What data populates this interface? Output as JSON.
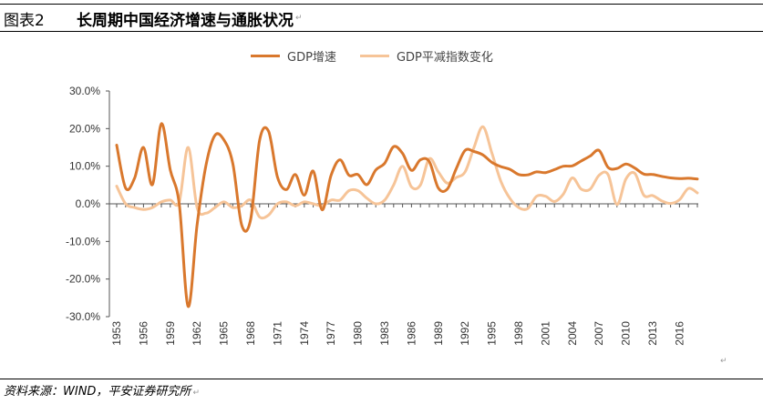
{
  "header": {
    "figure_label": "图表2",
    "title": "长周期中国经济增速与通胀状况",
    "return_mark": "↵"
  },
  "source": "资料来源：WIND，平安证券研究所",
  "chart_data": {
    "type": "line",
    "title": "长周期中国经济增速与通胀状况",
    "xlabel": "",
    "ylabel": "",
    "ylim": [
      -30,
      30
    ],
    "yticks": [
      30,
      20,
      10,
      0,
      -10,
      -20,
      -30
    ],
    "ytick_labels": [
      "30.0%",
      "20.0%",
      "10.0%",
      "0.0%",
      "-10.0%",
      "-20.0%",
      "-30.0%"
    ],
    "xlim": [
      1953,
      2018
    ],
    "xticks": [
      1953,
      1956,
      1959,
      1962,
      1965,
      1968,
      1971,
      1974,
      1977,
      1980,
      1983,
      1986,
      1989,
      1992,
      1995,
      1998,
      2001,
      2004,
      2007,
      2010,
      2013,
      2016
    ],
    "legend_position": "top-center",
    "series": [
      {
        "name": "GDP增速",
        "color": "#d9782d",
        "x": [
          1953,
          1954,
          1955,
          1956,
          1957,
          1958,
          1959,
          1960,
          1961,
          1962,
          1963,
          1964,
          1965,
          1966,
          1967,
          1968,
          1969,
          1970,
          1971,
          1972,
          1973,
          1974,
          1975,
          1976,
          1977,
          1978,
          1979,
          1980,
          1981,
          1982,
          1983,
          1984,
          1985,
          1986,
          1987,
          1988,
          1989,
          1990,
          1991,
          1992,
          1993,
          1994,
          1995,
          1996,
          1997,
          1998,
          1999,
          2000,
          2001,
          2002,
          2003,
          2004,
          2005,
          2006,
          2007,
          2008,
          2009,
          2010,
          2011,
          2012,
          2013,
          2014,
          2015,
          2016,
          2017,
          2018
        ],
        "values": [
          15.6,
          4.2,
          6.8,
          15.0,
          5.1,
          21.3,
          9.0,
          0.0,
          -27.3,
          -5.6,
          10.3,
          18.2,
          17.0,
          10.7,
          -5.7,
          -4.1,
          16.9,
          19.3,
          7.1,
          3.8,
          7.8,
          2.3,
          8.7,
          -1.6,
          7.6,
          11.7,
          7.6,
          7.8,
          5.1,
          9.0,
          10.8,
          15.2,
          13.4,
          8.9,
          11.7,
          11.2,
          4.2,
          3.9,
          9.3,
          14.2,
          13.9,
          13.0,
          11.0,
          9.9,
          9.2,
          7.8,
          7.7,
          8.5,
          8.3,
          9.1,
          10.0,
          10.1,
          11.4,
          12.7,
          14.2,
          9.7,
          9.4,
          10.6,
          9.5,
          7.9,
          7.8,
          7.3,
          6.9,
          6.7,
          6.8,
          6.6
        ]
      },
      {
        "name": "GDP平减指数变化",
        "color": "#f6c498",
        "x": [
          1953,
          1954,
          1955,
          1956,
          1957,
          1958,
          1959,
          1960,
          1961,
          1962,
          1963,
          1964,
          1965,
          1966,
          1967,
          1968,
          1969,
          1970,
          1971,
          1972,
          1973,
          1974,
          1975,
          1976,
          1977,
          1978,
          1979,
          1980,
          1981,
          1982,
          1983,
          1984,
          1985,
          1986,
          1987,
          1988,
          1989,
          1990,
          1991,
          1992,
          1993,
          1994,
          1995,
          1996,
          1997,
          1998,
          1999,
          2000,
          2001,
          2002,
          2003,
          2004,
          2005,
          2006,
          2007,
          2008,
          2009,
          2010,
          2011,
          2012,
          2013,
          2014,
          2015,
          2016,
          2017,
          2018
        ],
        "values": [
          4.7,
          0.0,
          -1.0,
          -1.5,
          -1.0,
          0.5,
          1.0,
          0.5,
          15.0,
          -1.0,
          -2.5,
          -1.0,
          0.5,
          -1.0,
          -0.5,
          1.0,
          -3.5,
          -3.0,
          0.0,
          0.5,
          -0.5,
          0.5,
          0.0,
          -0.5,
          1.0,
          1.0,
          3.5,
          3.5,
          1.5,
          0.0,
          1.0,
          5.0,
          10.0,
          4.5,
          5.0,
          12.0,
          8.5,
          5.5,
          7.0,
          8.5,
          15.0,
          20.5,
          13.5,
          6.0,
          1.5,
          -1.0,
          -1.3,
          2.0,
          2.0,
          0.6,
          2.6,
          6.9,
          3.9,
          3.9,
          7.6,
          7.8,
          -0.2,
          6.6,
          8.1,
          2.3,
          2.2,
          0.8,
          0.1,
          1.1,
          4.1,
          2.9
        ]
      }
    ]
  }
}
